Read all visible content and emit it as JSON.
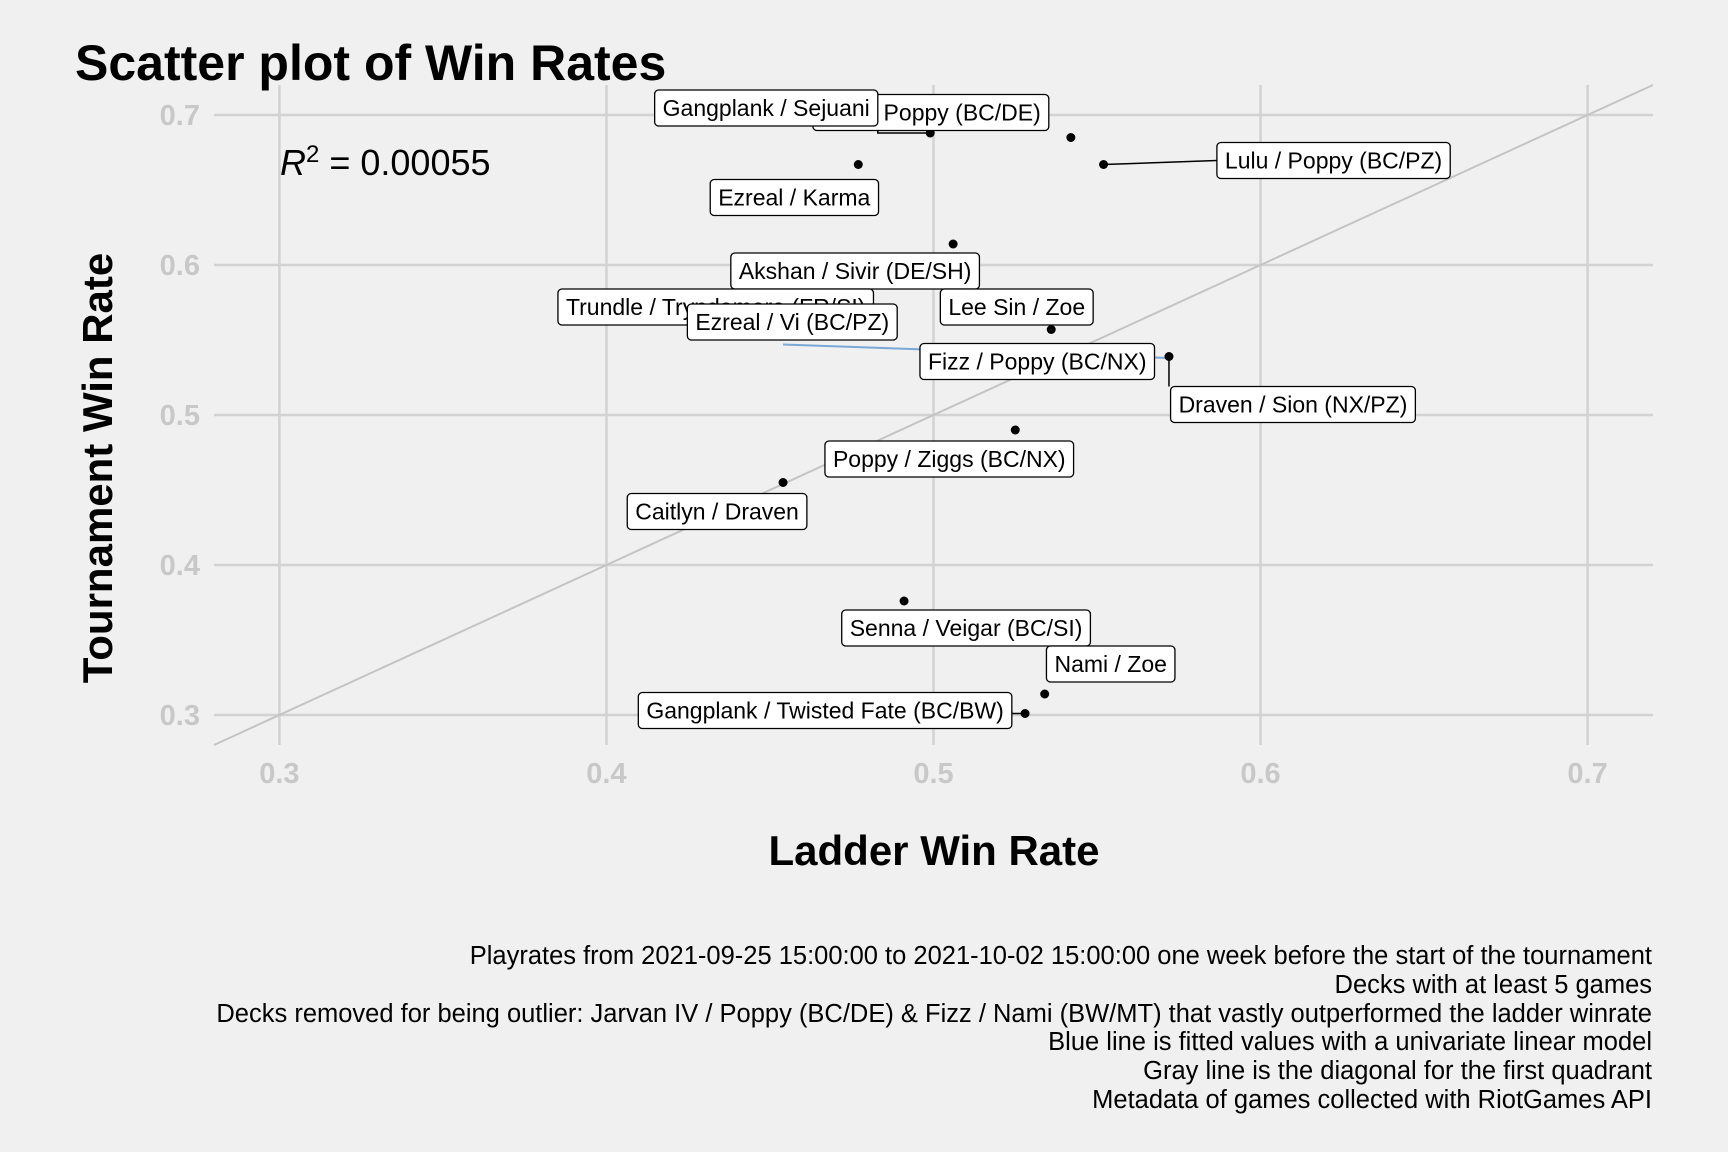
{
  "title": "Scatter plot of Win Rates",
  "r2": {
    "symbol": "R",
    "exponent": "2",
    "value_text": " = 0.00055"
  },
  "caption": [
    "Playrates from 2021-09-25 15:00:00 to 2021-10-02 15:00:00 one week before the start of the tournament",
    "Decks with at least 5 games",
    "Decks removed for being outlier: Jarvan IV / Poppy (BC/DE) & Fizz / Nami (BW/MT) that vastly outperformed the ladder winrate",
    "Blue line is fitted values with a univariate linear model",
    "Gray line is the diagonal for the first quadrant",
    "Metadata of games collected with RiotGames API"
  ],
  "colors": {
    "background": "#f0f0f0",
    "grid": "#d2d2d2",
    "tick_labels": "#c8c8c8",
    "diagonal": "#c4c4c4",
    "fit_line": "#7aa7d6",
    "points": "#000000"
  },
  "chart_data": {
    "type": "scatter",
    "title": "Scatter plot of Win Rates",
    "xlabel": "Ladder Win Rate",
    "ylabel": "Tournament Win Rate",
    "xlim": [
      0.28,
      0.72
    ],
    "ylim": [
      0.28,
      0.72
    ],
    "xticks": [
      "0.3",
      "0.4",
      "0.5",
      "0.6",
      "0.7"
    ],
    "yticks": [
      "0.3",
      "0.4",
      "0.5",
      "0.6",
      "0.7"
    ],
    "grid": true,
    "points": [
      {
        "label": "Lulu / Poppy (BC/DE)",
        "x": 0.542,
        "y": 0.685
      },
      {
        "label": "Gangplank / Sejuani",
        "x": 0.499,
        "y": 0.688
      },
      {
        "label": "Lulu / Poppy (BC/PZ)",
        "x": 0.552,
        "y": 0.667
      },
      {
        "label": "Ezreal / Karma",
        "x": 0.477,
        "y": 0.667
      },
      {
        "label": "Akshan / Sivir (DE/SH)",
        "x": 0.506,
        "y": 0.614
      },
      {
        "label": "Trundle / Tryndamere (FR/SI)",
        "x": 0.486,
        "y": 0.59
      },
      {
        "label": "Ezreal / Vi (BC/PZ)",
        "x": 0.477,
        "y": 0.584
      },
      {
        "label": "Lee Sin / Zoe",
        "x": 0.512,
        "y": 0.588
      },
      {
        "label": "Fizz / Poppy (BC/NX)",
        "x": 0.536,
        "y": 0.557
      },
      {
        "label": "Draven / Sion (NX/PZ)",
        "x": 0.572,
        "y": 0.539
      },
      {
        "label": "Poppy / Ziggs (BC/NX)",
        "x": 0.525,
        "y": 0.49
      },
      {
        "label": "Caitlyn / Draven",
        "x": 0.454,
        "y": 0.455
      },
      {
        "label": "Senna / Veigar (BC/SI)",
        "x": 0.491,
        "y": 0.376
      },
      {
        "label": "Nami / Zoe",
        "x": 0.534,
        "y": 0.314
      },
      {
        "label": "Gangplank / Twisted Fate (BC/BW)",
        "x": 0.528,
        "y": 0.301
      }
    ],
    "fit_line": {
      "x": [
        0.454,
        0.572
      ],
      "y": [
        0.547,
        0.538
      ]
    },
    "diagonal": {
      "x": [
        0.28,
        0.72
      ],
      "y": [
        0.28,
        0.72
      ]
    }
  }
}
